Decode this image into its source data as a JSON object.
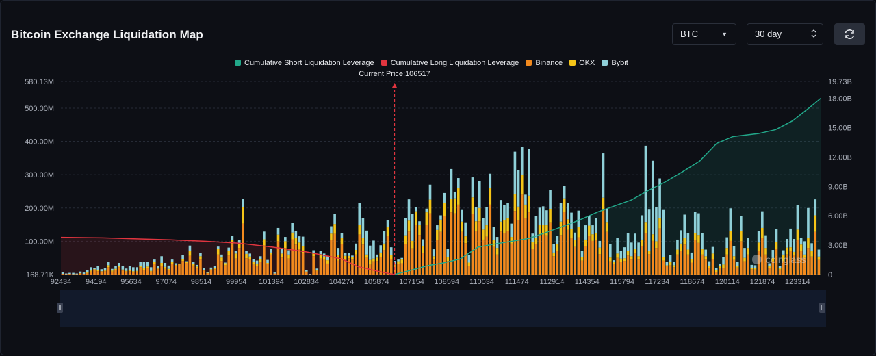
{
  "header": {
    "title": "Bitcoin Exchange Liquidation Map",
    "symbol_value": "BTC",
    "range_value": "30 day"
  },
  "icons": {
    "symbol_caret": "caret-down-icon",
    "range_stepper": "updown-icon",
    "refresh": "refresh-icon"
  },
  "watermark": "coinglass",
  "colors": {
    "short_line": "#22a88a",
    "long_line": "#e0353f",
    "binance": "#f28a1e",
    "okx": "#f5c518",
    "bybit": "#8fd0d8",
    "current_price": "#e0353f"
  },
  "chart_data": {
    "type": "bar",
    "title": "Bitcoin Exchange Liquidation Map",
    "current_price_label": "Current Price:106517",
    "current_price": 106517,
    "legend_position": "top-center",
    "legend": [
      {
        "name": "Cumulative Short Liquidation Leverage",
        "color": "#22a88a"
      },
      {
        "name": "Cumulative Long Liquidation Leverage",
        "color": "#e0353f"
      },
      {
        "name": "Binance",
        "color": "#f28a1e"
      },
      {
        "name": "OKX",
        "color": "#f5c518"
      },
      {
        "name": "Bybit",
        "color": "#8fd0d8"
      }
    ],
    "x_range": [
      92434,
      124500
    ],
    "x_tick_labels": [
      "92434",
      "94194",
      "95634",
      "97074",
      "98514",
      "99954",
      "101394",
      "102834",
      "104274",
      "105874",
      "107154",
      "108594",
      "110034",
      "111474",
      "112914",
      "114354",
      "115794",
      "117234",
      "118674",
      "120114",
      "121874",
      "123314"
    ],
    "left_axis": {
      "range": [
        0,
        580.13
      ],
      "unit": "M",
      "tick_values": [
        0,
        100,
        200,
        300,
        400,
        500,
        580.13
      ],
      "tick_labels": [
        "168.71K",
        "100.00M",
        "200.00M",
        "300.00M",
        "400.00M",
        "500.00M",
        "580.13M"
      ]
    },
    "right_axis": {
      "range": [
        0,
        19.73
      ],
      "unit": "B",
      "tick_values": [
        0,
        3,
        6,
        9,
        12,
        15,
        18,
        19.73
      ],
      "tick_labels": [
        "0",
        "3.00B",
        "6.00B",
        "9.00B",
        "12.00B",
        "15.00B",
        "18.00B",
        "19.73B"
      ]
    },
    "bar_series": [
      {
        "name": "Binance",
        "values": [
          2,
          1,
          2,
          1,
          1,
          3,
          2,
          4,
          9,
          13,
          10,
          9,
          10,
          22,
          9,
          14,
          22,
          12,
          9,
          10,
          8,
          9,
          22,
          14,
          19,
          9,
          32,
          16,
          26,
          17,
          13,
          31,
          27,
          30,
          41,
          35,
          56,
          27,
          20,
          45,
          12,
          4,
          14,
          16,
          60,
          41,
          28,
          57,
          90,
          48,
          80,
          153,
          49,
          46,
          30,
          25,
          38,
          87,
          31,
          60,
          3,
          100,
          51,
          80,
          48,
          106,
          90,
          76,
          64,
          7,
          1,
          55,
          11,
          48,
          44,
          33,
          103,
          122,
          42,
          92,
          47,
          49,
          45,
          60,
          120,
          90,
          50,
          30,
          40,
          41,
          52,
          74,
          116,
          47,
          30,
          32,
          34,
          91,
          129,
          79,
          150,
          119,
          65,
          150,
          184,
          45,
          104,
          128,
          175,
          41,
          187,
          184,
          210,
          128,
          94,
          26,
          182,
          130,
          160,
          105,
          114,
          210,
          83,
          60,
          129,
          124,
          130,
          93,
          191,
          164,
          240,
          170,
          187,
          78,
          91,
          119,
          120,
          118,
          157,
          55,
          71,
          119,
          189,
          134,
          111,
          83,
          112,
          42,
          85,
          116,
          101,
          104,
          61,
          191,
          128,
          40,
          32,
          50,
          38,
          41,
          57,
          45,
          63,
          45,
          85,
          125,
          61,
          101,
          80,
          139,
          42
        ]
      },
      {
        "name": "OKX",
        "values": [
          0,
          0,
          0,
          0,
          0,
          1,
          0,
          2,
          3,
          3,
          3,
          1,
          2,
          6,
          3,
          3,
          3,
          3,
          2,
          4,
          2,
          2,
          4,
          5,
          5,
          2,
          7,
          2,
          9,
          6,
          4,
          7,
          2,
          1,
          6,
          2,
          14,
          5,
          4,
          10,
          2,
          1,
          2,
          4,
          17,
          10,
          6,
          15,
          13,
          15,
          13,
          50,
          13,
          8,
          8,
          8,
          8,
          19,
          4,
          6,
          0,
          20,
          12,
          20,
          12,
          20,
          20,
          20,
          21,
          2,
          0,
          8,
          2,
          13,
          10,
          10,
          20,
          30,
          16,
          17,
          9,
          7,
          7,
          14,
          30,
          20,
          10,
          14,
          8,
          10,
          14,
          19,
          28,
          11,
          2,
          8,
          11,
          27,
          33,
          22,
          40,
          29,
          20,
          37,
          41,
          10,
          30,
          37,
          40,
          12,
          40,
          45,
          50,
          31,
          21,
          10,
          50,
          30,
          40,
          30,
          34,
          50,
          20,
          20,
          30,
          40,
          40,
          20,
          50,
          40,
          60,
          40,
          50,
          20,
          20,
          30,
          30,
          30,
          40,
          11,
          21,
          40,
          40,
          32,
          25,
          20,
          30,
          10,
          20,
          31,
          20,
          20,
          20,
          40,
          30,
          11,
          7,
          13,
          10,
          8,
          13,
          10,
          14,
          10,
          20,
          33,
          11,
          20,
          20,
          30,
          10
        ]
      },
      {
        "name": "Bybit",
        "values": [
          6,
          2,
          3,
          4,
          2,
          5,
          4,
          7,
          10,
          4,
          12,
          6,
          8,
          9,
          5,
          9,
          10,
          10,
          7,
          11,
          12,
          11,
          12,
          18,
          15,
          11,
          6,
          7,
          20,
          12,
          10,
          7,
          5,
          2,
          11,
          3,
          17,
          5,
          5,
          9,
          6,
          3,
          5,
          5,
          7,
          9,
          2,
          9,
          13,
          8,
          10,
          24,
          10,
          9,
          9,
          9,
          9,
          23,
          9,
          11,
          3,
          20,
          17,
          13,
          13,
          30,
          20,
          19,
          29,
          4,
          1,
          10,
          5,
          9,
          9,
          12,
          22,
          31,
          22,
          16,
          9,
          9,
          5,
          19,
          65,
          60,
          72,
          43,
          54,
          9,
          22,
          37,
          19,
          24,
          9,
          5,
          5,
          52,
          64,
          81,
          12,
          12,
          21,
          11,
          45,
          21,
          14,
          13,
          30,
          24,
          90,
          20,
          30,
          35,
          42,
          22,
          60,
          42,
          80,
          35,
          55,
          43,
          40,
          33,
          65,
          44,
          45,
          40,
          128,
          110,
          84,
          30,
          140,
          25,
          65,
          52,
          55,
          45,
          58,
          25,
          24,
          57,
          37,
          50,
          50,
          23,
          50,
          18,
          43,
          28,
          27,
          46,
          20,
          133,
          40,
          40,
          4,
          48,
          23,
          33,
          55,
          41,
          46,
          41,
          73,
          229,
          123,
          221,
          103,
          120,
          142
        ]
      }
    ],
    "bar_series_tail": [
      {
        "name": "Binance",
        "values": [
          25,
          28,
          22,
          60,
          70,
          90,
          60,
          36,
          104,
          95,
          60,
          45,
          20,
          46,
          8,
          20,
          20,
          60,
          101,
          44,
          21,
          100,
          40,
          60,
          16,
          15,
          70,
          110,
          60,
          20,
          40,
          78,
          15,
          40,
          61,
          72,
          58,
          105,
          70,
          50,
          80,
          54,
          128,
          44
        ]
      },
      {
        "name": "OKX",
        "values": [
          3,
          10,
          6,
          15,
          23,
          20,
          15,
          10,
          20,
          24,
          16,
          10,
          5,
          17,
          5,
          5,
          10,
          20,
          30,
          11,
          5,
          30,
          10,
          20,
          4,
          4,
          26,
          30,
          20,
          5,
          10,
          20,
          5,
          20,
          20,
          10,
          10,
          30,
          20,
          10,
          30,
          16,
          50,
          10
        ]
      },
      {
        "name": "Bybit",
        "values": [
          10,
          20,
          10,
          30,
          40,
          70,
          50,
          20,
          64,
          65,
          48,
          20,
          15,
          20,
          6,
          8,
          22,
          32,
          68,
          30,
          12,
          45,
          30,
          30,
          9,
          9,
          34,
          50,
          38,
          9,
          24,
          38,
          5,
          13,
          26,
          56,
          39,
          73,
          20,
          40,
          90,
          24,
          48,
          21
        ]
      }
    ],
    "short_cumulative": {
      "name": "Cumulative Short Liquidation Leverage",
      "axis": "right",
      "x": [
        106517,
        107154,
        107900,
        108594,
        109300,
        110034,
        110700,
        111474,
        112200,
        112914,
        113600,
        114354,
        115100,
        115794,
        116500,
        117234,
        117900,
        118674,
        119400,
        120114,
        120800,
        121874,
        122600,
        123314,
        124000,
        124500
      ],
      "y": [
        0,
        0.4,
        0.9,
        1.2,
        1.6,
        2.8,
        3.1,
        3.4,
        3.7,
        4.3,
        4.9,
        5.6,
        6.4,
        7.0,
        7.6,
        8.6,
        9.4,
        10.5,
        11.6,
        13.4,
        14.1,
        14.4,
        14.8,
        15.7,
        17.0,
        18.0
      ]
    },
    "long_cumulative": {
      "name": "Cumulative Long Liquidation Leverage",
      "axis": "right",
      "x": [
        92434,
        94194,
        95634,
        97074,
        98514,
        99954,
        101394,
        102834,
        104274,
        105000,
        105874,
        106517
      ],
      "y": [
        3.8,
        3.75,
        3.65,
        3.55,
        3.4,
        3.2,
        2.8,
        2.3,
        1.6,
        0.8,
        0.3,
        0
      ]
    }
  }
}
